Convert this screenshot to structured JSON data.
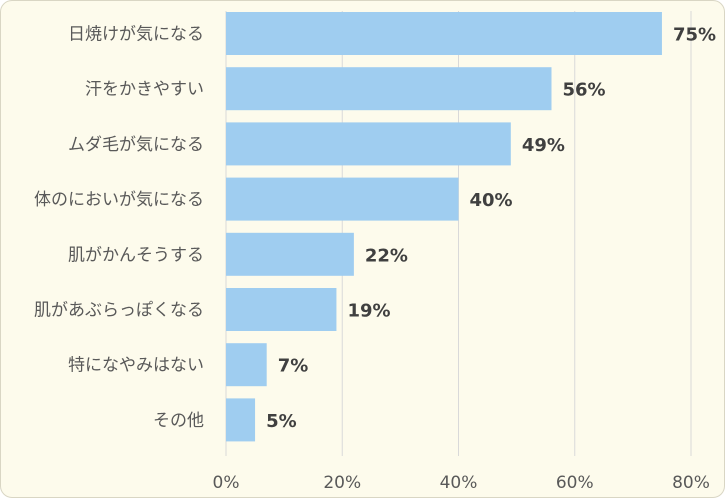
{
  "chart_data": {
    "type": "bar",
    "orientation": "horizontal",
    "categories": [
      "日焼けが気になる",
      "汗をかきやすい",
      "ムダ毛が気になる",
      "体のにおいが気になる",
      "肌がかんそうする",
      "肌があぶらっぽくなる",
      "特になやみはない",
      "その他"
    ],
    "values": [
      75,
      56,
      49,
      40,
      22,
      19,
      7,
      5
    ],
    "value_labels": [
      "75%",
      "56%",
      "49%",
      "40%",
      "22%",
      "19%",
      "7%",
      "5%"
    ],
    "x_ticks": [
      "0%",
      "20%",
      "40%",
      "60%",
      "80%"
    ],
    "xlim": [
      0,
      80
    ],
    "grid": true,
    "title": "",
    "xlabel": "",
    "ylabel": ""
  },
  "colors": {
    "bar": "#9fcdf0",
    "background": "#fdfbec",
    "grid": "#d9d9d9"
  }
}
